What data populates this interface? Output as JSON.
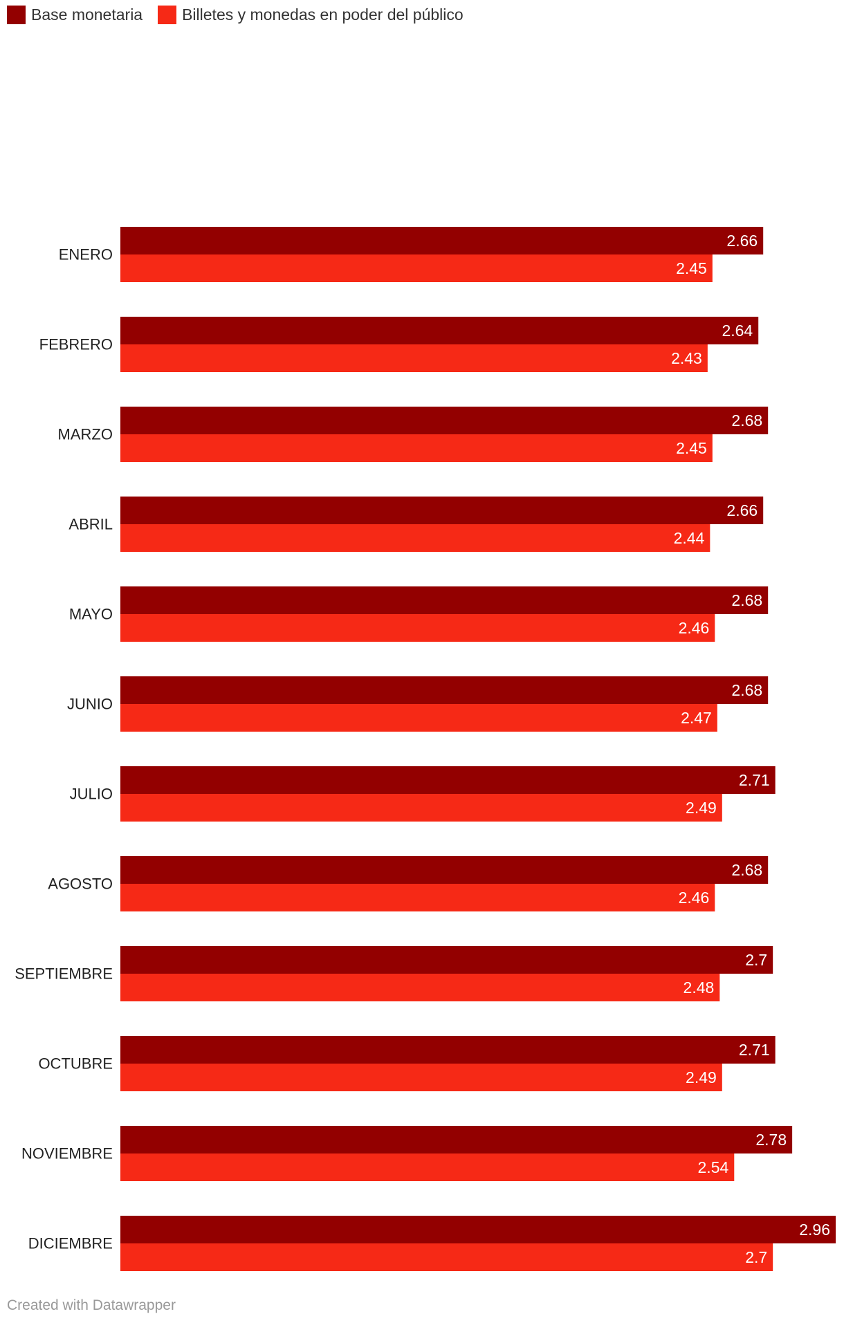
{
  "chart_data": {
    "type": "bar",
    "orientation": "horizontal",
    "categories": [
      "ENERO",
      "FEBRERO",
      "MARZO",
      "ABRIL",
      "MAYO",
      "JUNIO",
      "JULIO",
      "AGOSTO",
      "SEPTIEMBRE",
      "OCTUBRE",
      "NOVIEMBRE",
      "DICIEMBRE"
    ],
    "series": [
      {
        "name": "Base monetaria",
        "color": "#930000",
        "values": [
          2.66,
          2.64,
          2.68,
          2.66,
          2.68,
          2.68,
          2.71,
          2.68,
          2.7,
          2.71,
          2.78,
          2.96
        ],
        "labels": [
          "2.66",
          "2.64",
          "2.68",
          "2.66",
          "2.68",
          "2.68",
          "2.71",
          "2.68",
          "2.7",
          "2.71",
          "2.78",
          "2.96"
        ]
      },
      {
        "name": "Billetes y monedas en poder del público",
        "color": "#f62916",
        "values": [
          2.45,
          2.43,
          2.45,
          2.44,
          2.46,
          2.47,
          2.49,
          2.46,
          2.48,
          2.49,
          2.54,
          2.7
        ],
        "labels": [
          "2.45",
          "2.43",
          "2.45",
          "2.44",
          "2.46",
          "2.47",
          "2.49",
          "2.46",
          "2.48",
          "2.49",
          "2.54",
          "2.7"
        ]
      }
    ],
    "xlim": [
      0,
      2.96
    ],
    "legend_position": "top-left",
    "grid": false
  },
  "footer": {
    "credit": "Created with Datawrapper"
  }
}
